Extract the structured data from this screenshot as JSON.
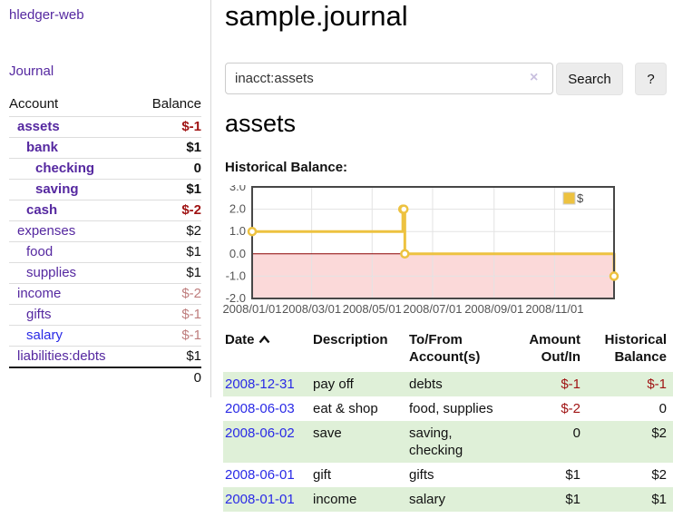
{
  "theme": {
    "link_purple": "#5528a0",
    "link_blue": "#2a2ae6",
    "negative_red": "#a01414",
    "negative_muted": "#be7d7d",
    "row_stripe_green": "#dff0d8"
  },
  "sidebar": {
    "brand": "hledger-web",
    "journal_label": "Journal",
    "accounts_header": {
      "account": "Account",
      "balance": "Balance"
    },
    "accounts": [
      {
        "name": "assets",
        "balance": "$-1",
        "level": 0,
        "bold": true,
        "balance_style": "negative"
      },
      {
        "name": "bank",
        "balance": "$1",
        "level": 1,
        "bold": true,
        "balance_style": ""
      },
      {
        "name": "checking",
        "balance": "0",
        "level": 2,
        "bold": true,
        "balance_style": ""
      },
      {
        "name": "saving",
        "balance": "$1",
        "level": 2,
        "bold": true,
        "balance_style": ""
      },
      {
        "name": "cash",
        "balance": "$-2",
        "level": 1,
        "bold": true,
        "balance_style": "negative"
      },
      {
        "name": "expenses",
        "balance": "$2",
        "level": 0,
        "bold": false,
        "balance_style": ""
      },
      {
        "name": "food",
        "balance": "$1",
        "level": 1,
        "bold": false,
        "balance_style": ""
      },
      {
        "name": "supplies",
        "balance": "$1",
        "level": 1,
        "bold": false,
        "balance_style": ""
      },
      {
        "name": "income",
        "balance": "$-2",
        "level": 0,
        "bold": false,
        "balance_style": "negative-muted"
      },
      {
        "name": "gifts",
        "balance": "$-1",
        "level": 1,
        "bold": false,
        "balance_style": "negative-muted"
      },
      {
        "name": "salary",
        "balance": "$-1",
        "level": 1,
        "bold": false,
        "balance_style": "negative-muted",
        "link_style": "blue"
      },
      {
        "name": "liabilities:debts",
        "balance": "$1",
        "level": 0,
        "bold": false,
        "balance_style": ""
      }
    ],
    "total": "0"
  },
  "main": {
    "title": "sample.journal",
    "search": {
      "value": "inacct:assets",
      "clear_icon": "×",
      "button_label": "Search",
      "help_label": "?"
    },
    "account_heading": "assets",
    "chart_heading": "Historical Balance:",
    "register": {
      "columns": [
        {
          "label": "Date",
          "sorted_asc": true
        },
        {
          "label": "Description"
        },
        {
          "label": "To/From Account(s)"
        },
        {
          "label": "Amount Out/In"
        },
        {
          "label": "Historical Balance"
        }
      ],
      "rows": [
        {
          "date": "2008-12-31",
          "description": "pay off",
          "accounts": "debts",
          "amount": "$-1",
          "balance": "$-1",
          "amount_style": "negative",
          "balance_style": "negative"
        },
        {
          "date": "2008-06-03",
          "description": "eat & shop",
          "accounts": "food, supplies",
          "amount": "$-2",
          "balance": "0",
          "amount_style": "negative",
          "balance_style": ""
        },
        {
          "date": "2008-06-02",
          "description": "save",
          "accounts": "saving, checking",
          "amount": "0",
          "balance": "$2",
          "amount_style": "",
          "balance_style": ""
        },
        {
          "date": "2008-06-01",
          "description": "gift",
          "accounts": "gifts",
          "amount": "$1",
          "balance": "$2",
          "amount_style": "",
          "balance_style": ""
        },
        {
          "date": "2008-01-01",
          "description": "income",
          "accounts": "salary",
          "amount": "$1",
          "balance": "$1",
          "amount_style": "",
          "balance_style": ""
        }
      ]
    }
  },
  "chart_data": {
    "type": "line",
    "step": true,
    "title": "Historical Balance:",
    "series": [
      {
        "name": "$",
        "points": [
          [
            "2008-01-01",
            1
          ],
          [
            "2008-06-01",
            2
          ],
          [
            "2008-06-02",
            2
          ],
          [
            "2008-06-03",
            0
          ],
          [
            "2008-12-31",
            -1
          ]
        ]
      }
    ],
    "x_range": [
      "2008-01-01",
      "2008-12-31"
    ],
    "ylim": [
      -2,
      3
    ],
    "y_ticks": [
      3,
      2,
      1,
      0,
      -1,
      -2
    ],
    "x_ticks": [
      "2008-01-01",
      "2008-03-01",
      "2008-05-01",
      "2008-07-01",
      "2008-09-01",
      "2008-11-01"
    ],
    "legend_position": "top-right",
    "grid": true,
    "colors": {
      "series": "#edc240",
      "negative_zone": "#fbd9d9",
      "zero_line": "#8b0000",
      "grid": "#e3e3e3",
      "border": "#474747"
    }
  }
}
